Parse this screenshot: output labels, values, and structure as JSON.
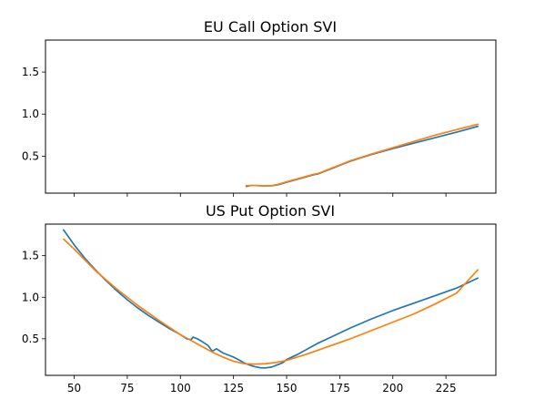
{
  "colors": {
    "series_a": "#1f77b4",
    "series_b": "#ff7f0e",
    "axis": "#000000",
    "background": "#ffffff"
  },
  "chart_data": [
    {
      "type": "line",
      "title": "EU Call Option SVI",
      "xlabel": "",
      "ylabel": "",
      "xlim": [
        36.5,
        248.5
      ],
      "ylim": [
        0.06,
        1.88
      ],
      "xticks": [
        50,
        75,
        100,
        125,
        150,
        175,
        200,
        225
      ],
      "show_xtick_labels": false,
      "yticks": [
        0.5,
        1.0,
        1.5
      ],
      "ytick_labels": [
        "0.5",
        "1.0",
        "1.5"
      ],
      "grid": false,
      "legend": "none",
      "series": [
        {
          "color": "#1f77b4",
          "x": [
            131,
            133,
            136,
            140,
            143,
            146,
            150,
            155,
            160,
            163,
            165,
            168,
            172,
            176,
            180,
            185,
            190,
            200,
            210,
            220,
            230,
            240
          ],
          "y": [
            0.14,
            0.15,
            0.15,
            0.145,
            0.148,
            0.16,
            0.19,
            0.225,
            0.26,
            0.28,
            0.29,
            0.32,
            0.36,
            0.4,
            0.44,
            0.48,
            0.52,
            0.59,
            0.655,
            0.72,
            0.785,
            0.855
          ]
        },
        {
          "color": "#ff7f0e",
          "x": [
            131,
            133,
            136,
            140,
            143,
            146,
            150,
            155,
            160,
            163,
            165,
            168,
            172,
            176,
            180,
            185,
            190,
            200,
            210,
            220,
            230,
            240
          ],
          "y": [
            0.15,
            0.15,
            0.15,
            0.145,
            0.15,
            0.165,
            0.195,
            0.23,
            0.265,
            0.285,
            0.295,
            0.325,
            0.365,
            0.405,
            0.445,
            0.485,
            0.525,
            0.6,
            0.675,
            0.75,
            0.815,
            0.88
          ]
        }
      ]
    },
    {
      "type": "line",
      "title": "US Put Option SVI",
      "xlabel": "",
      "ylabel": "",
      "xlim": [
        36.5,
        248.5
      ],
      "ylim": [
        0.06,
        1.88
      ],
      "xticks": [
        50,
        75,
        100,
        125,
        150,
        175,
        200,
        225
      ],
      "xtick_labels": [
        "50",
        "75",
        "100",
        "125",
        "150",
        "175",
        "200",
        "225"
      ],
      "show_xtick_labels": true,
      "yticks": [
        0.5,
        1.0,
        1.5
      ],
      "ytick_labels": [
        "0.5",
        "1.0",
        "1.5"
      ],
      "grid": false,
      "legend": "none",
      "series": [
        {
          "color": "#1f77b4",
          "x": [
            45,
            50,
            55,
            60,
            65,
            70,
            75,
            80,
            85,
            90,
            95,
            100,
            103,
            105,
            106,
            108,
            110,
            113,
            115,
            117,
            120,
            123,
            125,
            128,
            130,
            133,
            135,
            138,
            140,
            143,
            145,
            148,
            150,
            155,
            160,
            165,
            170,
            175,
            180,
            190,
            200,
            210,
            220,
            230,
            240
          ],
          "y": [
            1.81,
            1.63,
            1.47,
            1.33,
            1.2,
            1.08,
            0.97,
            0.87,
            0.78,
            0.7,
            0.62,
            0.55,
            0.5,
            0.49,
            0.52,
            0.5,
            0.47,
            0.42,
            0.35,
            0.38,
            0.33,
            0.3,
            0.28,
            0.24,
            0.21,
            0.18,
            0.165,
            0.15,
            0.15,
            0.16,
            0.18,
            0.21,
            0.25,
            0.31,
            0.38,
            0.45,
            0.51,
            0.57,
            0.63,
            0.74,
            0.84,
            0.93,
            1.02,
            1.11,
            1.23
          ]
        },
        {
          "color": "#ff7f0e",
          "x": [
            45,
            50,
            55,
            60,
            70,
            80,
            90,
            100,
            110,
            115,
            120,
            125,
            130,
            135,
            140,
            145,
            150,
            160,
            170,
            180,
            190,
            200,
            210,
            220,
            230,
            240
          ],
          "y": [
            1.7,
            1.58,
            1.45,
            1.32,
            1.1,
            0.9,
            0.72,
            0.55,
            0.41,
            0.34,
            0.28,
            0.23,
            0.2,
            0.195,
            0.2,
            0.215,
            0.24,
            0.32,
            0.41,
            0.5,
            0.6,
            0.7,
            0.8,
            0.92,
            1.05,
            1.33
          ]
        }
      ]
    }
  ]
}
